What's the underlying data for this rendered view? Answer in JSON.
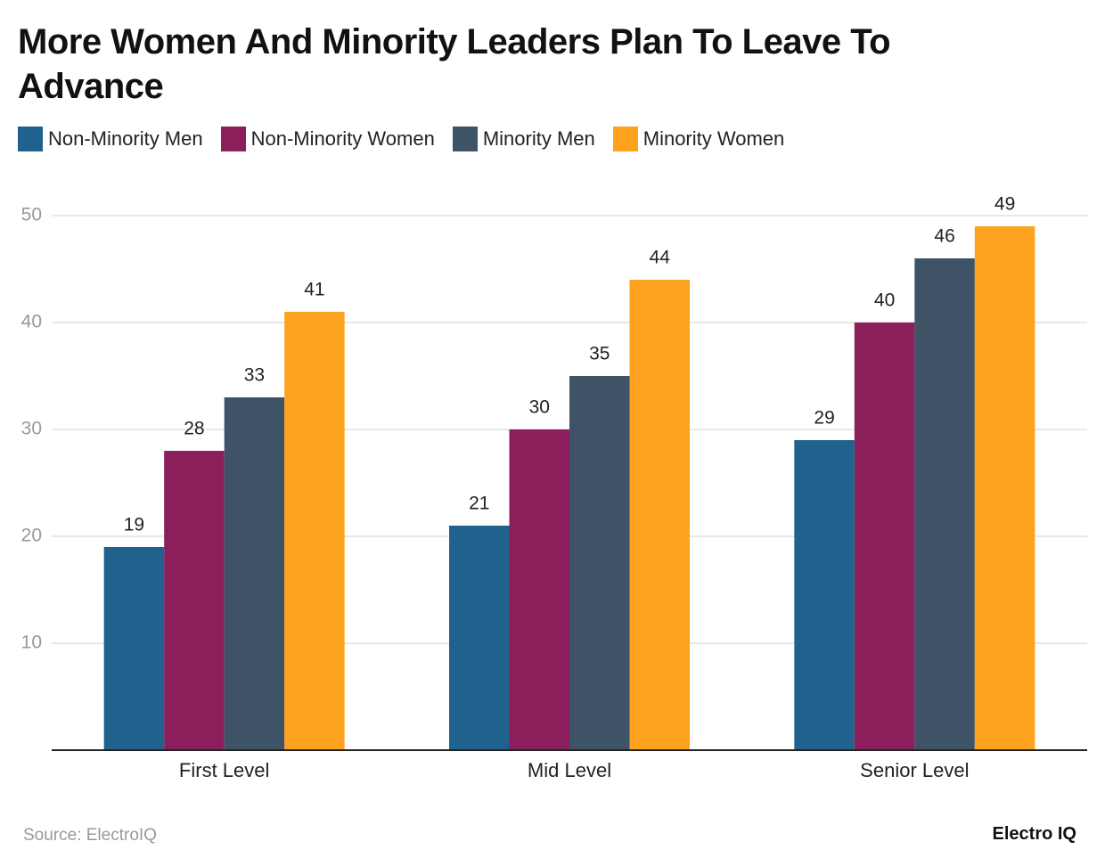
{
  "chart_data": {
    "type": "bar",
    "title": "More Women And Minority Leaders Plan To Leave To Advance",
    "categories": [
      "First Level",
      "Mid Level",
      "Senior Level"
    ],
    "series": [
      {
        "name": "Non-Minority Men",
        "color": "#1f628e",
        "values": [
          19,
          21,
          29
        ]
      },
      {
        "name": "Non-Minority Women",
        "color": "#8a1f5c",
        "values": [
          28,
          30,
          40
        ]
      },
      {
        "name": "Minority Men",
        "color": "#3e5366",
        "values": [
          33,
          35,
          46
        ]
      },
      {
        "name": "Minority Women",
        "color": "#fda21f",
        "values": [
          41,
          44,
          49
        ]
      }
    ],
    "ylim": [
      0,
      50
    ],
    "yticks": [
      10,
      20,
      30,
      40,
      50
    ],
    "grid": true,
    "source": "Source: ElectroIQ",
    "brand": "Electro IQ"
  }
}
